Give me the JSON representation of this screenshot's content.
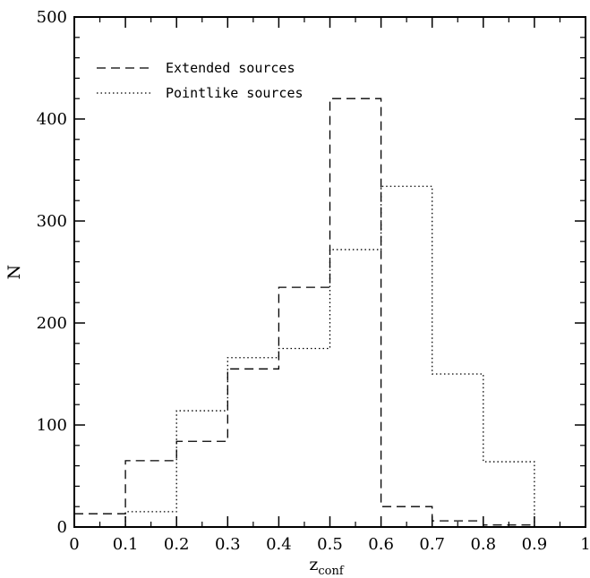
{
  "chart_data": {
    "type": "histogram",
    "title": "",
    "xlabel": "z",
    "xlabel_subscript": "conf",
    "ylabel": "N",
    "xlim": [
      0,
      1
    ],
    "ylim": [
      0,
      500
    ],
    "x_ticks": [
      "0",
      "0.1",
      "0.2",
      "0.3",
      "0.4",
      "0.5",
      "0.6",
      "0.7",
      "0.8",
      "0.9",
      "1"
    ],
    "y_ticks": [
      "0",
      "100",
      "200",
      "300",
      "400",
      "500"
    ],
    "bin_edges": [
      0,
      0.1,
      0.2,
      0.3,
      0.4,
      0.5,
      0.6,
      0.7,
      0.8,
      0.9
    ],
    "legend_position": "top-left",
    "grid": false,
    "series": [
      {
        "name": "Extended sources",
        "line_style": "dashed",
        "values": [
          13,
          65,
          84,
          155,
          235,
          420,
          20,
          6,
          2
        ]
      },
      {
        "name": "Pointlike sources",
        "line_style": "dotted",
        "values": [
          0,
          15,
          114,
          166,
          175,
          272,
          334,
          150,
          64
        ]
      }
    ]
  }
}
